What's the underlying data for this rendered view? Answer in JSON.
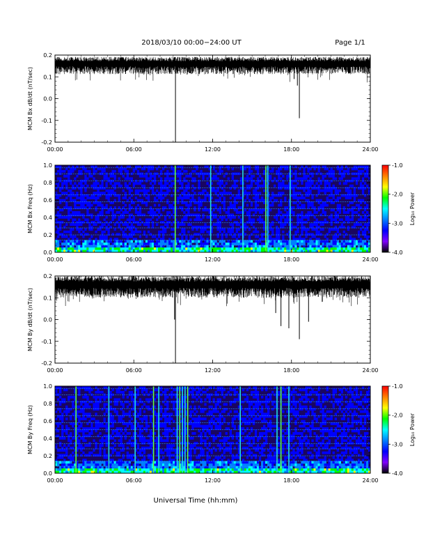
{
  "header": {
    "title": "2018/03/10   00:00−24:00 UT",
    "page": "Page 1/1"
  },
  "footer": {
    "xlabel": "Universal Time (hh:mm)"
  },
  "time_ticks": [
    "00:00",
    "06:00",
    "12:00",
    "18:00",
    "24:00"
  ],
  "colorbar": {
    "label": "Log₁₀ Power",
    "ticks": [
      "-1.0",
      "-2.0",
      "-3.0",
      "-4.0"
    ],
    "colors": [
      "#ff0000",
      "#ff8000",
      "#ffff00",
      "#00ff00",
      "#00ffff",
      "#0080ff",
      "#0000ff",
      "#8000ff",
      "#000000"
    ]
  },
  "chart_data": [
    {
      "type": "line",
      "ylabel": "MCM Bx dB/dt (nT/sec)",
      "xlim_hours": [
        0,
        24
      ],
      "ylim": [
        -0.2,
        0.2
      ],
      "y_ticks": [
        "0.2",
        "0.1",
        "0.0",
        "-0.1",
        "-0.2"
      ],
      "baseline": 0.16,
      "noise": 0.02,
      "spikes": [
        {
          "t": 9.17,
          "min": -0.2
        },
        {
          "t": 18.6,
          "min": -0.09
        },
        {
          "t": 18.45,
          "min": 0.06
        },
        {
          "t": 18.2,
          "min": 0.09
        }
      ]
    },
    {
      "type": "heatmap",
      "ylabel": "MCM Bx Freq (Hz)",
      "xlim_hours": [
        0,
        24
      ],
      "ylim": [
        0.0,
        1.0
      ],
      "y_ticks": [
        "1.0",
        "0.8",
        "0.6",
        "0.4",
        "0.2",
        "0.0"
      ],
      "zlim": [
        -4.0,
        -1.0
      ],
      "bright_times": [
        9.15,
        11.85,
        14.3,
        16.05,
        16.2,
        17.9
      ],
      "lines_hz": [
        0.08,
        0.14,
        0.2,
        0.28,
        0.34,
        0.42,
        0.5,
        0.58,
        0.66,
        0.74,
        0.82,
        0.9,
        0.97
      ]
    },
    {
      "type": "line",
      "ylabel": "MCM By dB/dt (nT/sec)",
      "xlim_hours": [
        0,
        24
      ],
      "ylim": [
        -0.2,
        0.2
      ],
      "y_ticks": [
        "0.2",
        "0.1",
        "0.0",
        "-0.1",
        "-0.2"
      ],
      "baseline": 0.16,
      "noise": 0.025,
      "spikes": [
        {
          "t": 9.17,
          "min": -0.2
        },
        {
          "t": 9.1,
          "min": 0.0
        },
        {
          "t": 17.2,
          "min": -0.03
        },
        {
          "t": 17.8,
          "min": -0.04
        },
        {
          "t": 18.6,
          "min": -0.09
        },
        {
          "t": 19.3,
          "min": -0.01
        },
        {
          "t": 16.8,
          "min": 0.03
        }
      ]
    },
    {
      "type": "heatmap",
      "ylabel": "MCM By Freq (Hz)",
      "xlim_hours": [
        0,
        24
      ],
      "ylim": [
        0.0,
        1.0
      ],
      "y_ticks": [
        "1.0",
        "0.8",
        "0.6",
        "0.4",
        "0.2",
        "0.0"
      ],
      "zlim": [
        -4.0,
        -1.0
      ],
      "bright_times": [
        1.6,
        4.1,
        6.1,
        7.5,
        7.9,
        9.3,
        9.5,
        9.7,
        9.9,
        10.1,
        14.1,
        16.9,
        17.2,
        17.8
      ],
      "lines_hz": [
        0.08,
        0.14,
        0.2,
        0.28,
        0.34,
        0.42,
        0.5,
        0.58,
        0.66,
        0.74,
        0.82,
        0.9,
        0.97
      ]
    }
  ]
}
